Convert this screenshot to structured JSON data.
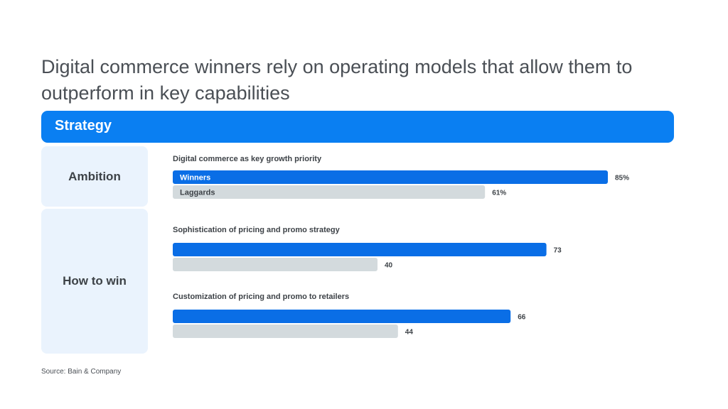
{
  "title": "Digital commerce winners rely on operating models that allow them to outperform in key capabilities",
  "section": "Strategy",
  "rows": {
    "ambition": "Ambition",
    "how_to_win": "How to win"
  },
  "source": "Source: Bain & Company",
  "colors": {
    "band": "#0a7ff2",
    "winners_bar": "#0a6ee6",
    "laggards_bar": "#d3dadd",
    "row_box": "#eaf3fd"
  },
  "chart_data": {
    "type": "bar",
    "orientation": "horizontal",
    "xlim": [
      0,
      100
    ],
    "legend": [
      "Winners",
      "Laggards"
    ],
    "groups": [
      {
        "label": "Digital commerce as key growth priority",
        "row": "Ambition",
        "series": [
          {
            "name": "Winners",
            "value": 85,
            "label": "85%"
          },
          {
            "name": "Laggards",
            "value": 61,
            "label": "61%"
          }
        ]
      },
      {
        "label": "Sophistication of pricing and promo strategy",
        "row": "How to win",
        "series": [
          {
            "name": "Winners",
            "value": 73,
            "label": "73"
          },
          {
            "name": "Laggards",
            "value": 40,
            "label": "40"
          }
        ]
      },
      {
        "label": "Customization of pricing and promo to retailers",
        "row": "How to win",
        "series": [
          {
            "name": "Winners",
            "value": 66,
            "label": "66"
          },
          {
            "name": "Laggards",
            "value": 44,
            "label": "44"
          }
        ]
      }
    ]
  }
}
